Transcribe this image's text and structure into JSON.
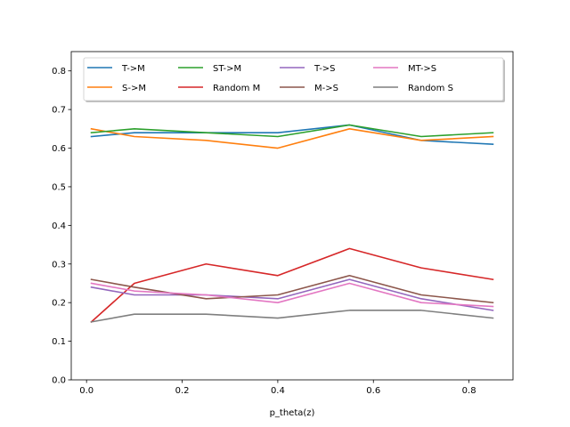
{
  "chart_data": {
    "type": "line",
    "title": "",
    "xlabel": "p_theta(z)",
    "ylabel": "",
    "x": [
      0.01,
      0.1,
      0.25,
      0.4,
      0.55,
      0.7,
      0.85
    ],
    "xlim": [
      -0.032,
      0.892
    ],
    "ylim": [
      0.0,
      0.85
    ],
    "xticks": [
      "0.0",
      "0.2",
      "0.4",
      "0.6",
      "0.8"
    ],
    "xtick_values": [
      0.0,
      0.2,
      0.4,
      0.6,
      0.8
    ],
    "yticks": [
      "0.0",
      "0.1",
      "0.2",
      "0.3",
      "0.4",
      "0.5",
      "0.6",
      "0.7",
      "0.8"
    ],
    "ytick_values": [
      0.0,
      0.1,
      0.2,
      0.3,
      0.4,
      0.5,
      0.6,
      0.7,
      0.8
    ],
    "grid": false,
    "legend_position": "top",
    "series": [
      {
        "name": "T->M",
        "color": "#1f77b4",
        "values": [
          0.63,
          0.64,
          0.64,
          0.64,
          0.66,
          0.62,
          0.61
        ]
      },
      {
        "name": "S->M",
        "color": "#ff7f0e",
        "values": [
          0.65,
          0.63,
          0.62,
          0.6,
          0.65,
          0.62,
          0.63
        ]
      },
      {
        "name": "ST->M",
        "color": "#2ca02c",
        "values": [
          0.64,
          0.65,
          0.64,
          0.63,
          0.66,
          0.63,
          0.64
        ]
      },
      {
        "name": "Random M",
        "color": "#d62728",
        "values": [
          0.15,
          0.25,
          0.3,
          0.27,
          0.34,
          0.29,
          0.26
        ]
      },
      {
        "name": "T->S",
        "color": "#9467bd",
        "values": [
          0.24,
          0.22,
          0.22,
          0.21,
          0.26,
          0.21,
          0.18
        ]
      },
      {
        "name": "M->S",
        "color": "#8c564b",
        "values": [
          0.26,
          0.24,
          0.21,
          0.22,
          0.27,
          0.22,
          0.2
        ]
      },
      {
        "name": "MT->S",
        "color": "#e377c2",
        "values": [
          0.25,
          0.23,
          0.22,
          0.2,
          0.25,
          0.2,
          0.19
        ]
      },
      {
        "name": "Random S",
        "color": "#7f7f7f",
        "values": [
          0.15,
          0.17,
          0.17,
          0.16,
          0.18,
          0.18,
          0.16
        ]
      }
    ]
  }
}
